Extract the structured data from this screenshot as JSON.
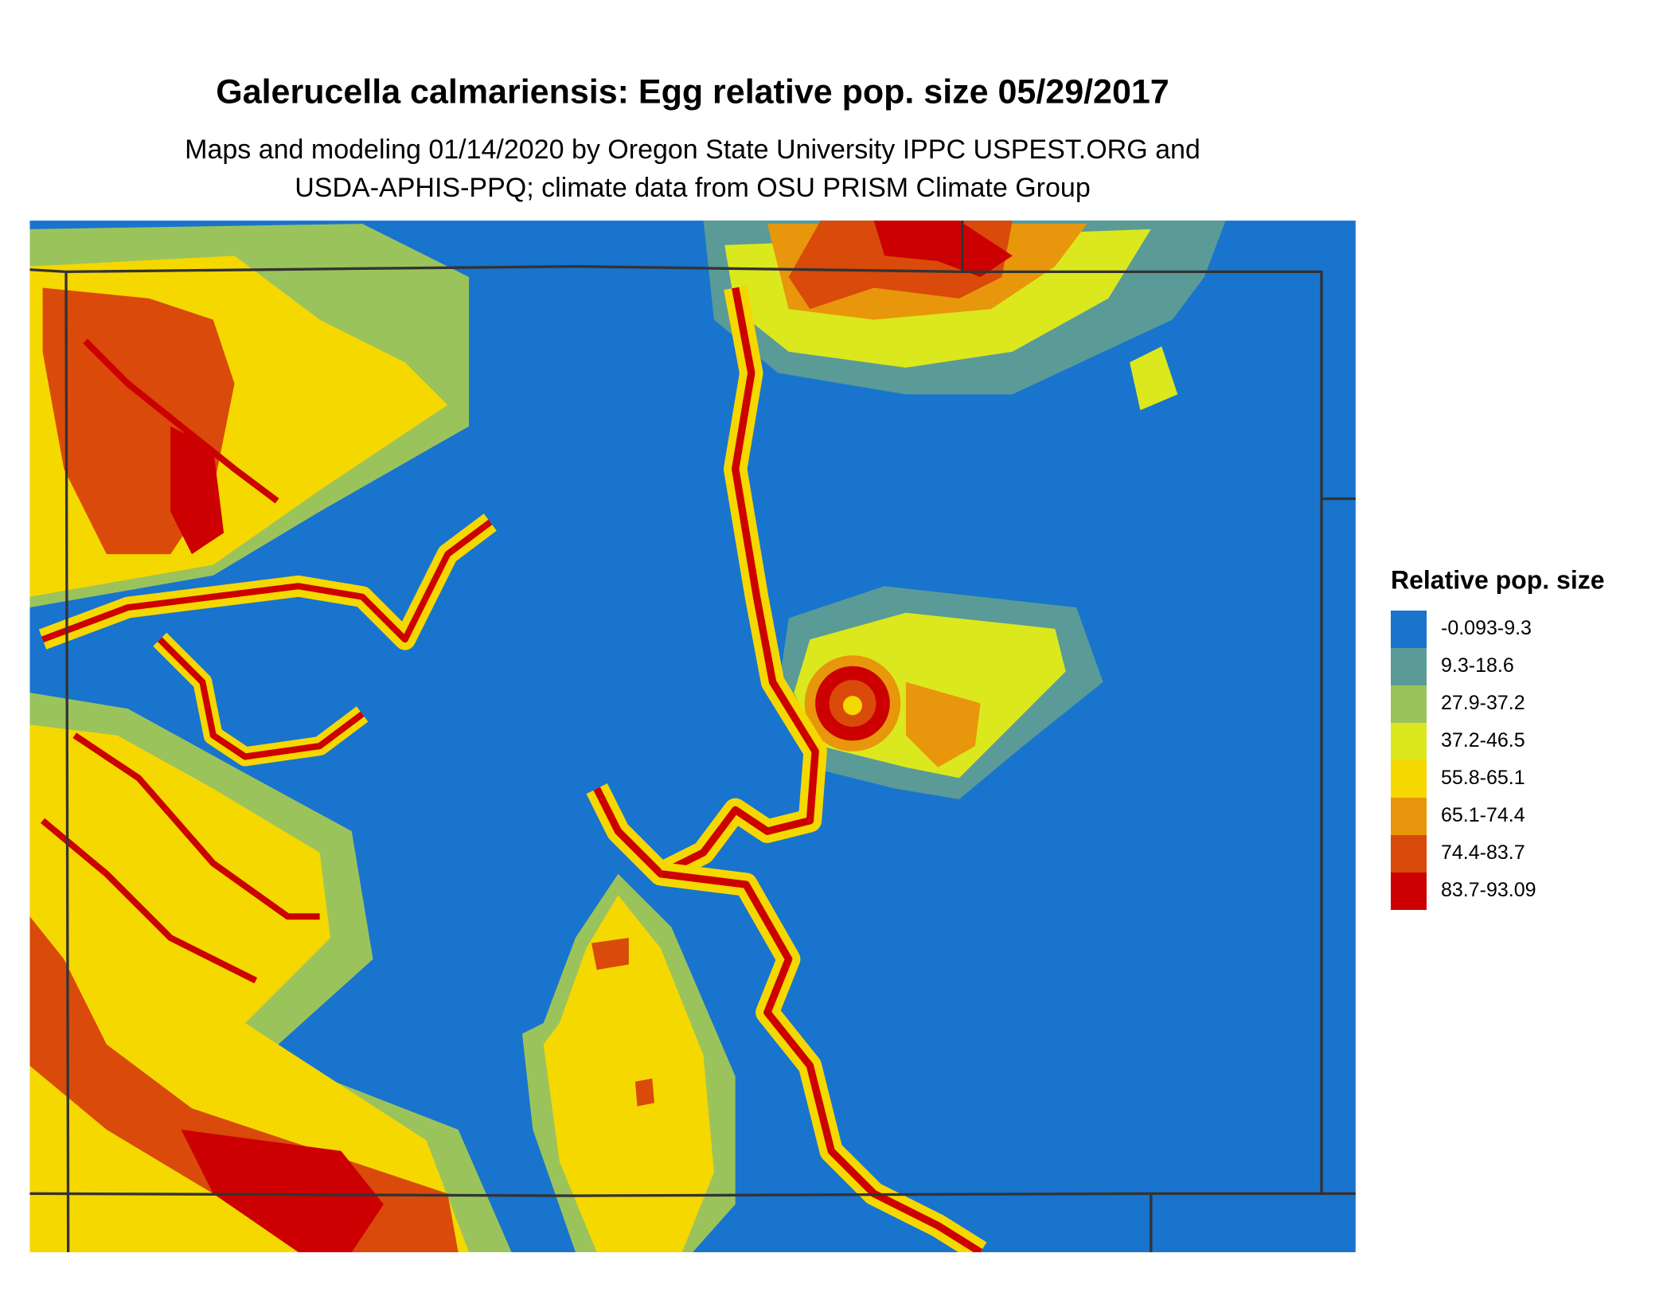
{
  "title": "Galerucella calmariensis: Egg relative pop. size 05/29/2017",
  "subtitle": [
    "Maps and modeling 01/14/2020 by Oregon State University IPPC USPEST.ORG and",
    "USDA-APHIS-PPQ; climate data from OSU PRISM Climate Group"
  ],
  "legend": {
    "title": "Relative pop. size",
    "items": [
      {
        "label": "-0.093-9.3",
        "color": "#1874cd"
      },
      {
        "label": "9.3-18.6",
        "color": "#5a9b97"
      },
      {
        "label": "27.9-37.2",
        "color": "#9bc35c"
      },
      {
        "label": "37.2-46.5",
        "color": "#dbe81d"
      },
      {
        "label": "55.8-65.1",
        "color": "#f5d800"
      },
      {
        "label": "65.1-74.4",
        "color": "#e8960c"
      },
      {
        "label": "74.4-83.7",
        "color": "#d94a0b"
      },
      {
        "label": "83.7-93.09",
        "color": "#cc0000"
      }
    ]
  }
}
